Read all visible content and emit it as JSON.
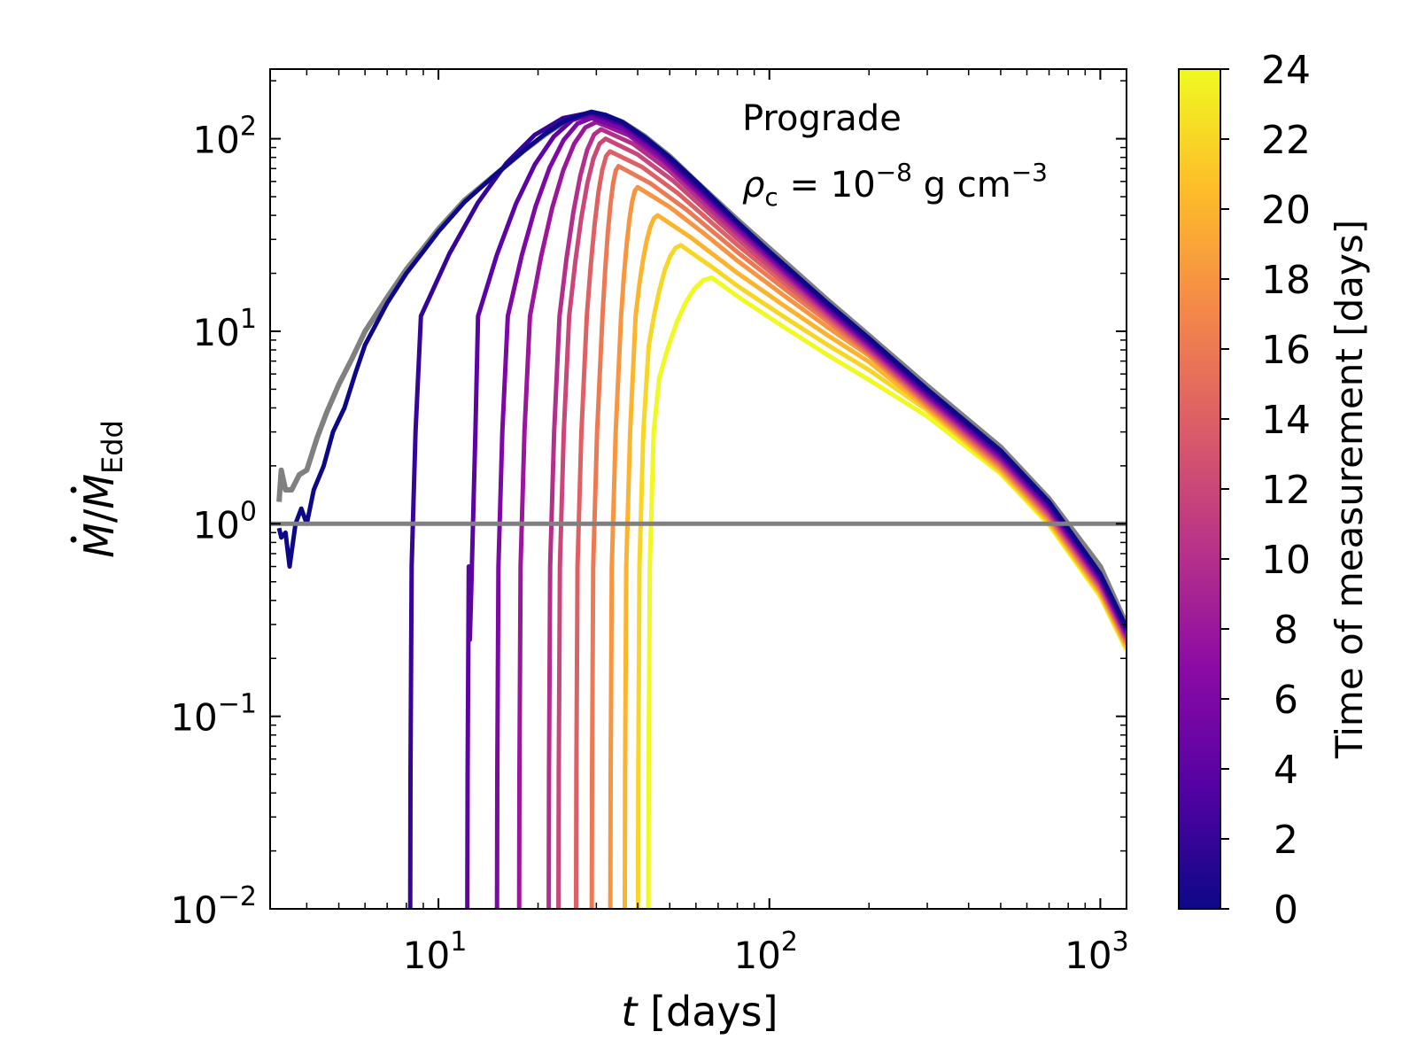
{
  "chart_data": {
    "type": "line",
    "title": "",
    "xlabel": "t [days]",
    "xlabel_parts": {
      "var": "t",
      "unit": " [days]"
    },
    "ylabel": "Ṁ/Ṁ_Edd",
    "ylabel_parts": {
      "num": "M",
      "slash": "/",
      "den": "M",
      "sub": "Edd"
    },
    "xscale": "log",
    "yscale": "log",
    "xlim": [
      3.1,
      1200
    ],
    "ylim": [
      0.01,
      230
    ],
    "x_ticks": [
      {
        "base": "10",
        "exp": "1",
        "value": 10
      },
      {
        "base": "10",
        "exp": "2",
        "value": 100
      },
      {
        "base": "10",
        "exp": "3",
        "value": 1000
      }
    ],
    "y_ticks": [
      {
        "base": "10",
        "exp": "−2",
        "value": 0.01
      },
      {
        "base": "10",
        "exp": "−1",
        "value": 0.1
      },
      {
        "base": "10",
        "exp": "0",
        "value": 1
      },
      {
        "base": "10",
        "exp": "1",
        "value": 10
      },
      {
        "base": "10",
        "exp": "2",
        "value": 100
      }
    ],
    "annotations": {
      "line1": "Prograde",
      "rho_symbol": "ρ",
      "rho_sub": "c",
      "rho_eq": " = 10",
      "rho_exp": "−8",
      "rho_unit": " g cm",
      "rho_unit_exp": "−3"
    },
    "reference_line": {
      "y": 1.0,
      "color": "#808080"
    },
    "colorbar": {
      "label": "Time of measurement [days]",
      "colormap": "plasma",
      "range": [
        0,
        24
      ],
      "ticks": [
        "0",
        "2",
        "4",
        "6",
        "8",
        "10",
        "12",
        "14",
        "16",
        "18",
        "20",
        "22",
        "24"
      ],
      "stops": [
        "#0d0887",
        "#5302a3",
        "#8b0aa5",
        "#b83289",
        "#db5c68",
        "#f48849",
        "#febd2a",
        "#f0f921"
      ]
    },
    "base_curve": {
      "name": "full",
      "color": "#808080",
      "points": [
        [
          3.3,
          1.3
        ],
        [
          3.35,
          1.9
        ],
        [
          3.45,
          1.5
        ],
        [
          3.6,
          1.5
        ],
        [
          3.8,
          1.8
        ],
        [
          4.0,
          1.9
        ],
        [
          4.3,
          2.8
        ],
        [
          4.6,
          3.8
        ],
        [
          5.0,
          5.3
        ],
        [
          5.5,
          7.3
        ],
        [
          6.0,
          10
        ],
        [
          7.0,
          15
        ],
        [
          8.0,
          21
        ],
        [
          9.0,
          27
        ],
        [
          10.0,
          34
        ],
        [
          12.0,
          48
        ],
        [
          15.0,
          66
        ],
        [
          18.0,
          86
        ],
        [
          21.0,
          105
        ],
        [
          24.0,
          122
        ],
        [
          27.0,
          132
        ],
        [
          29.0,
          135
        ],
        [
          32.0,
          132
        ],
        [
          36.0,
          122
        ],
        [
          42.0,
          103
        ],
        [
          50.0,
          81
        ],
        [
          60.0,
          60
        ],
        [
          80.0,
          38
        ],
        [
          100.0,
          27
        ],
        [
          150.0,
          14.5
        ],
        [
          200.0,
          9.5
        ],
        [
          300.0,
          5.2
        ],
        [
          500.0,
          2.5
        ],
        [
          700.0,
          1.35
        ],
        [
          1000.0,
          0.6
        ],
        [
          1200.0,
          0.3
        ]
      ]
    },
    "series": [
      {
        "name": "0 days",
        "time": 0,
        "start": 3.3,
        "peak_t": 29,
        "peak": 138,
        "points": [
          [
            3.3,
            0.95
          ],
          [
            3.35,
            0.85
          ],
          [
            3.45,
            0.9
          ],
          [
            3.55,
            0.6
          ],
          [
            3.7,
            1.0
          ],
          [
            3.85,
            1.2
          ],
          [
            4.0,
            1.0
          ],
          [
            4.2,
            1.5
          ],
          [
            4.5,
            2.0
          ],
          [
            4.8,
            3.0
          ],
          [
            5.2,
            4.0
          ],
          [
            5.6,
            6.0
          ],
          [
            6.0,
            8.5
          ],
          [
            7.0,
            14
          ],
          [
            8.0,
            20
          ],
          [
            9.0,
            26
          ],
          [
            10.0,
            33
          ],
          [
            12.0,
            47
          ],
          [
            15.0,
            66
          ],
          [
            18.0,
            86
          ],
          [
            21.0,
            106
          ],
          [
            24.0,
            123
          ],
          [
            27.0,
            133
          ],
          [
            29.0,
            138
          ],
          [
            32.0,
            133
          ],
          [
            36.0,
            122
          ],
          [
            42.0,
            102
          ],
          [
            50.0,
            80
          ],
          [
            60.0,
            60
          ],
          [
            80.0,
            37
          ],
          [
            100.0,
            26
          ],
          [
            150.0,
            14
          ],
          [
            200.0,
            9.2
          ],
          [
            300.0,
            5.0
          ],
          [
            500.0,
            2.4
          ],
          [
            700.0,
            1.3
          ],
          [
            1000.0,
            0.55
          ],
          [
            1200.0,
            0.29
          ]
        ]
      },
      {
        "name": "2 days",
        "time": 2,
        "start": 8.2,
        "peak_t": 29,
        "peak": 137
      },
      {
        "name": "4 days",
        "time": 4,
        "start": 12.2,
        "peak_t": 29,
        "peak": 134
      },
      {
        "name": "6 days",
        "time": 6,
        "start": 15.0,
        "peak_t": 29,
        "peak": 128
      },
      {
        "name": "8 days",
        "time": 8,
        "start": 17.5,
        "peak_t": 30,
        "peak": 122
      },
      {
        "name": "10 days",
        "time": 10,
        "start": 21.5,
        "peak_t": 31,
        "peak": 112
      },
      {
        "name": "12 days",
        "time": 12,
        "start": 23.0,
        "peak_t": 32,
        "peak": 100
      },
      {
        "name": "14 days",
        "time": 14,
        "start": 26.0,
        "peak_t": 33,
        "peak": 86
      },
      {
        "name": "16 days",
        "time": 16,
        "start": 29.0,
        "peak_t": 35,
        "peak": 72
      },
      {
        "name": "18 days",
        "time": 18,
        "start": 33.0,
        "peak_t": 40,
        "peak": 56
      },
      {
        "name": "20 days",
        "time": 20,
        "start": 36.5,
        "peak_t": 46,
        "peak": 40
      },
      {
        "name": "22 days",
        "time": 22,
        "start": 40.0,
        "peak_t": 54,
        "peak": 28
      },
      {
        "name": "24 days",
        "time": 24,
        "start": 43.0,
        "peak_t": 67,
        "peak": 19
      }
    ]
  }
}
